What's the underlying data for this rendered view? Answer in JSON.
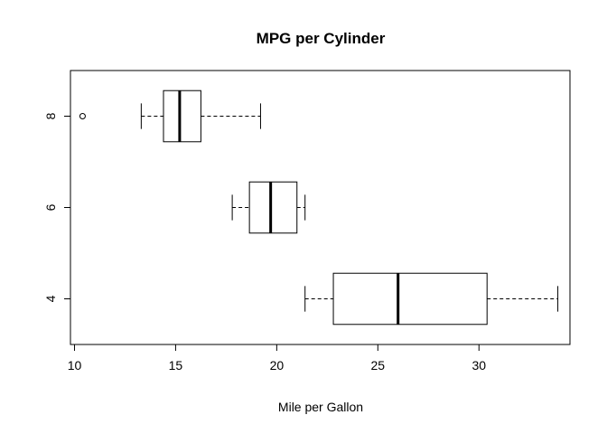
{
  "chart_data": {
    "type": "boxplot",
    "orientation": "horizontal",
    "title": "MPG per Cylinder",
    "xlabel": "Mile per Gallon",
    "ylabel": "",
    "xlim": [
      9.8,
      34.5
    ],
    "x_ticks": [
      10,
      15,
      20,
      25,
      30
    ],
    "categories": [
      "4",
      "6",
      "8"
    ],
    "grid": false,
    "legend": "none",
    "boxes": [
      {
        "category": "4",
        "whisker_low": 21.4,
        "q1": 22.8,
        "median": 26.0,
        "q3": 30.4,
        "whisker_high": 33.9,
        "outliers": []
      },
      {
        "category": "6",
        "whisker_low": 17.8,
        "q1": 18.65,
        "median": 19.7,
        "q3": 21.0,
        "whisker_high": 21.4,
        "outliers": []
      },
      {
        "category": "8",
        "whisker_low": 13.3,
        "q1": 14.4,
        "median": 15.2,
        "q3": 16.25,
        "whisker_high": 19.2,
        "outliers": [
          10.4
        ]
      }
    ]
  }
}
